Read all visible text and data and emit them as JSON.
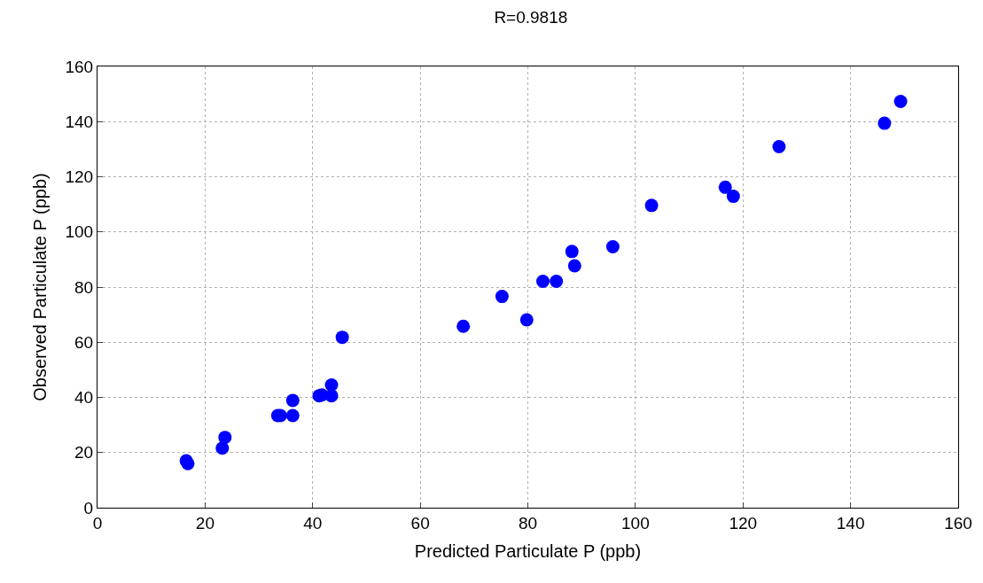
{
  "chart_data": {
    "type": "scatter",
    "title": "R=0.9818",
    "xlabel": "Predicted Particulate P (ppb)",
    "ylabel": "Observed Particulate P (ppb)",
    "x": [
      16.5,
      16.8,
      23.2,
      23.7,
      33.5,
      34,
      36.3,
      36.3,
      41.2,
      41.7,
      43.5,
      43.5,
      45.5,
      68,
      75.2,
      79.8,
      82.8,
      85.3,
      88.2,
      88.7,
      95.8,
      103,
      116.7,
      118.2,
      126.7,
      146.3,
      149.3
    ],
    "series": [
      {
        "color": "#0000ff",
        "values": [
          17,
          16,
          21.6,
          25.5,
          33.4,
          33.4,
          38.9,
          33.4,
          40.6,
          40.9,
          44.5,
          40.6,
          61.8,
          65.8,
          76.6,
          68.1,
          82.1,
          82.1,
          92.9,
          87.7,
          94.6,
          109.6,
          116.2,
          112.9,
          130.9,
          139.4,
          147.3
        ]
      }
    ],
    "xlim": [
      0,
      160
    ],
    "xticks": [
      0,
      20,
      40,
      60,
      80,
      100,
      120,
      140,
      160
    ],
    "ylim": [
      0,
      160
    ],
    "yticks": [
      0,
      20,
      40,
      60,
      80,
      100,
      120,
      140,
      160
    ],
    "grid": true,
    "marker": "circle"
  }
}
